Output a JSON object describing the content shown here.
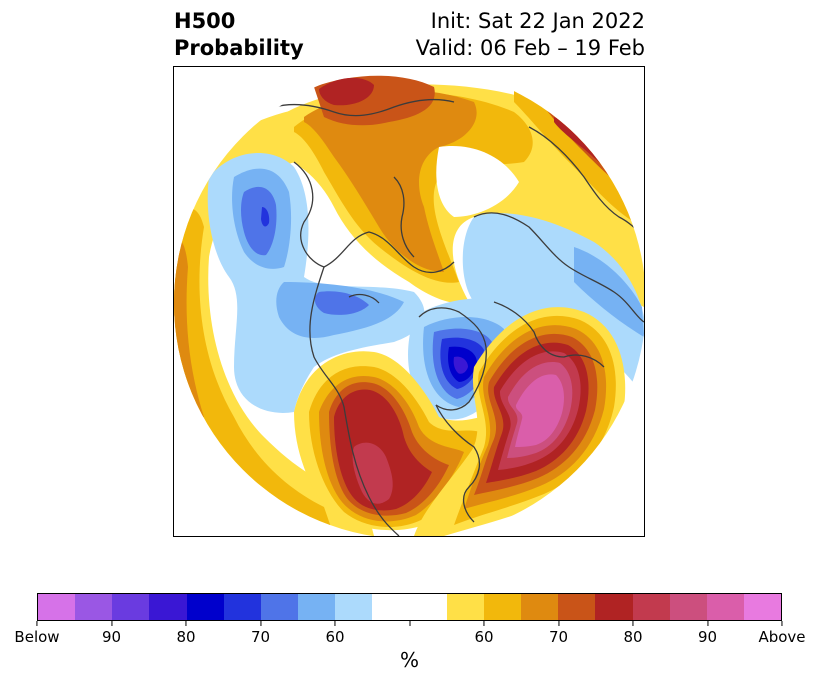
{
  "title": {
    "left_line1": "H500",
    "left_line2": "Probability",
    "right_line1": "Init: Sat 22 Jan 2022",
    "right_line2": "Valid: 06 Feb – 19 Feb"
  },
  "colorbar": {
    "colors": [
      "#d672e8",
      "#9a57e4",
      "#6a3be0",
      "#3a17d4",
      "#0000cc",
      "#2233dd",
      "#4f74e8",
      "#76b2f3",
      "#acdafc",
      "#ffffff",
      "#ffffff",
      "#ffe047",
      "#f2b80c",
      "#df8a10",
      "#c95418",
      "#b02323",
      "#c23a4e",
      "#cc4f7e",
      "#da5eaa",
      "#e87ae0"
    ],
    "tick_labels": [
      "Below",
      "90",
      "80",
      "70",
      "60",
      "",
      "60",
      "70",
      "80",
      "90",
      "Above"
    ],
    "units_label": "%"
  },
  "map": {
    "palette": {
      "b60": "#acdafc",
      "b65": "#76b2f3",
      "b70": "#4f74e8",
      "b75": "#2233dd",
      "b80": "#0000cc",
      "b85": "#3a17d4",
      "b90": "#6a3be0",
      "b95": "#9a57e4",
      "b100": "#d672e8",
      "a55": "#ffe047",
      "a60": "#f2b80c",
      "a65": "#df8a10",
      "a70": "#c95418",
      "a75": "#b02323",
      "a80": "#c23a4e",
      "a85": "#cc4f7e",
      "a90": "#da5eaa",
      "a95": "#e87ae0",
      "coast": "#3c3c3c"
    }
  }
}
